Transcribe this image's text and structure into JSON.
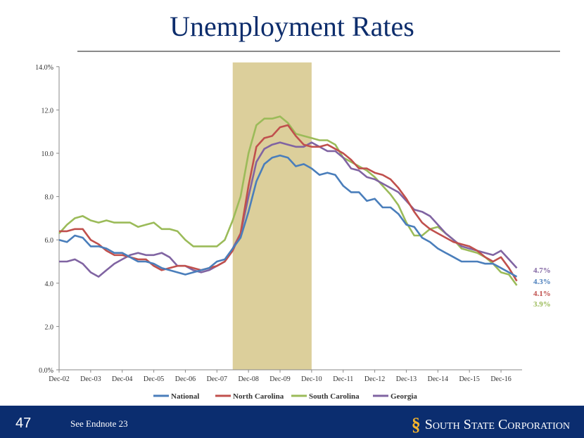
{
  "title": "Unemployment Rates",
  "footer": {
    "page": "47",
    "note": "See Endnote 23",
    "logo": "South State Corporation"
  },
  "chart_data": {
    "type": "line",
    "title": "Unemployment Rates",
    "x_ticks": [
      "Dec-02",
      "Dec-03",
      "Dec-04",
      "Dec-05",
      "Dec-06",
      "Dec-07",
      "Dec-08",
      "Dec-09",
      "Dec-10",
      "Dec-11",
      "Dec-12",
      "Dec-13",
      "Dec-14",
      "Dec-15",
      "Dec-16"
    ],
    "y_ticks": [
      "0.0%",
      "2.0",
      "4.0",
      "6.0",
      "8.0",
      "10.0",
      "12.0",
      "14.0%"
    ],
    "ylim": [
      0,
      14
    ],
    "x_note": "quarterly values, Dec-02 to Jun-17",
    "recession_shade_years_from_dec02": [
      5.5,
      8.0
    ],
    "shade_color": "#dccf9b",
    "legend_position": "bottom",
    "series": [
      {
        "name": "National",
        "color": "#4a7ebb",
        "end_label": "4.3%",
        "values": [
          6.0,
          5.9,
          6.2,
          6.1,
          5.7,
          5.7,
          5.6,
          5.4,
          5.4,
          5.2,
          5.0,
          5.0,
          4.9,
          4.7,
          4.6,
          4.5,
          4.4,
          4.5,
          4.6,
          4.7,
          5.0,
          5.1,
          5.6,
          6.1,
          7.3,
          8.7,
          9.5,
          9.8,
          9.9,
          9.8,
          9.4,
          9.5,
          9.3,
          9.0,
          9.1,
          9.0,
          8.5,
          8.2,
          8.2,
          7.8,
          7.9,
          7.5,
          7.5,
          7.2,
          6.7,
          6.6,
          6.1,
          5.9,
          5.6,
          5.4,
          5.2,
          5.0,
          5.0,
          5.0,
          4.9,
          4.9,
          4.7,
          4.5,
          4.3
        ]
      },
      {
        "name": "North Carolina",
        "color": "#c0504d",
        "end_label": "4.1%",
        "values": [
          6.4,
          6.4,
          6.5,
          6.5,
          6.0,
          5.8,
          5.5,
          5.3,
          5.3,
          5.2,
          5.1,
          5.1,
          4.8,
          4.6,
          4.7,
          4.8,
          4.8,
          4.7,
          4.6,
          4.7,
          4.8,
          5.0,
          5.5,
          6.3,
          8.5,
          10.3,
          10.7,
          10.8,
          11.2,
          11.3,
          10.8,
          10.4,
          10.3,
          10.3,
          10.4,
          10.2,
          10.0,
          9.7,
          9.3,
          9.3,
          9.1,
          9.0,
          8.8,
          8.4,
          7.9,
          7.3,
          6.8,
          6.5,
          6.3,
          6.1,
          5.9,
          5.8,
          5.7,
          5.5,
          5.2,
          5.0,
          5.2,
          4.7,
          4.1
        ]
      },
      {
        "name": "South Carolina",
        "color": "#9bbb59",
        "end_label": "3.9%",
        "values": [
          6.3,
          6.7,
          7.0,
          7.1,
          6.9,
          6.8,
          6.9,
          6.8,
          6.8,
          6.8,
          6.6,
          6.7,
          6.8,
          6.5,
          6.5,
          6.4,
          6.0,
          5.7,
          5.7,
          5.7,
          5.7,
          6.0,
          6.9,
          8.0,
          10.0,
          11.3,
          11.6,
          11.6,
          11.7,
          11.4,
          10.9,
          10.8,
          10.7,
          10.6,
          10.6,
          10.4,
          9.8,
          9.6,
          9.4,
          9.2,
          8.9,
          8.5,
          8.1,
          7.6,
          6.8,
          6.2,
          6.2,
          6.5,
          6.6,
          6.3,
          6.0,
          5.6,
          5.5,
          5.4,
          5.2,
          4.9,
          4.5,
          4.4,
          3.9
        ]
      },
      {
        "name": "Georgia",
        "color": "#8064a2",
        "end_label": "4.7%",
        "values": [
          5.0,
          5.0,
          5.1,
          4.9,
          4.5,
          4.3,
          4.6,
          4.9,
          5.1,
          5.3,
          5.4,
          5.3,
          5.3,
          5.4,
          5.2,
          4.8,
          4.8,
          4.6,
          4.5,
          4.6,
          4.8,
          5.0,
          5.6,
          6.3,
          8.0,
          9.6,
          10.2,
          10.4,
          10.5,
          10.4,
          10.3,
          10.3,
          10.5,
          10.3,
          10.1,
          10.1,
          9.8,
          9.3,
          9.2,
          8.9,
          8.8,
          8.6,
          8.4,
          8.2,
          7.8,
          7.4,
          7.3,
          7.1,
          6.7,
          6.3,
          6.0,
          5.7,
          5.6,
          5.5,
          5.4,
          5.3,
          5.5,
          5.1,
          4.7
        ]
      }
    ]
  }
}
